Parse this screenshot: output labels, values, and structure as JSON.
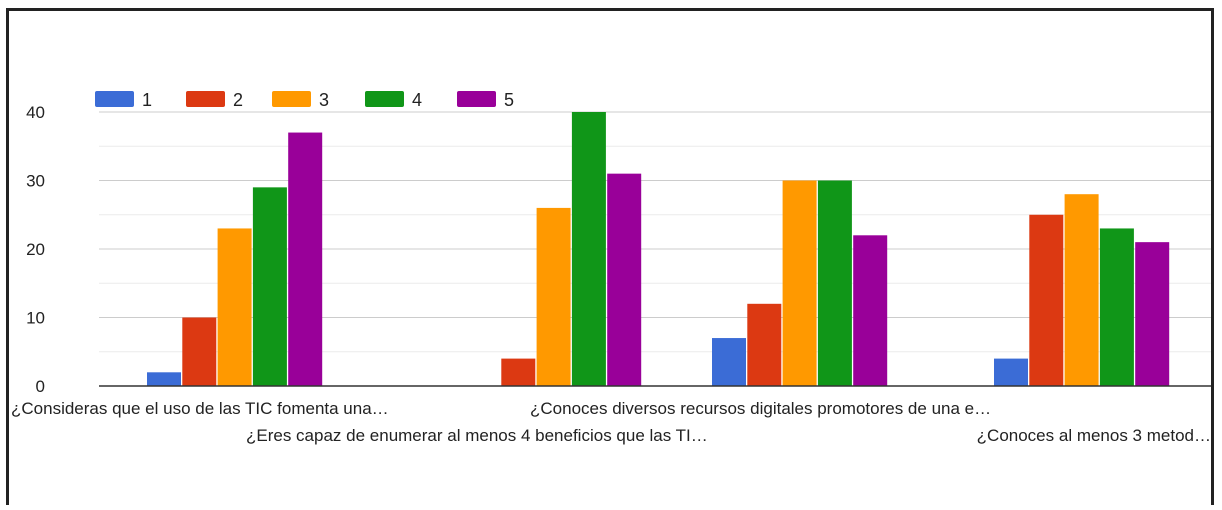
{
  "chart_data": {
    "type": "bar",
    "categories": [
      "¿Consideras que el uso de las TIC fomenta una…",
      "¿Eres capaz de enumerar al menos 4 beneficios que las TI…",
      "¿Conoces diversos recursos digitales promotores de una e…",
      "¿Conoces al menos 3 metod…"
    ],
    "series": [
      {
        "name": "1",
        "values": [
          2,
          0,
          7,
          4
        ],
        "color": "#3b6cd6"
      },
      {
        "name": "2",
        "values": [
          10,
          4,
          12,
          25
        ],
        "color": "#dc3912"
      },
      {
        "name": "3",
        "values": [
          23,
          26,
          30,
          28
        ],
        "color": "#ff9900"
      },
      {
        "name": "4",
        "values": [
          29,
          40,
          30,
          23
        ],
        "color": "#109618"
      },
      {
        "name": "5",
        "values": [
          37,
          31,
          22,
          21
        ],
        "color": "#990099"
      }
    ],
    "yticks": [
      0,
      10,
      20,
      30,
      40
    ],
    "ylim": [
      0,
      40
    ],
    "grid": true,
    "legend_position": "top-left"
  }
}
